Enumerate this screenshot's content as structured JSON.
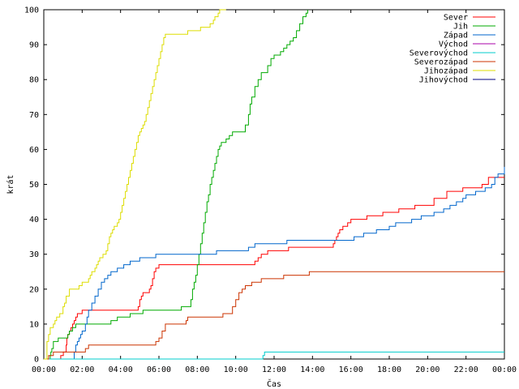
{
  "chart_data": {
    "type": "line",
    "xlabel": "Čas",
    "ylabel": "krát",
    "xlim": [
      0,
      1440
    ],
    "ylim": [
      0,
      100
    ],
    "x_unit": "minutes since 00:00",
    "x_ticks": [
      {
        "value": 0,
        "label": "00:00"
      },
      {
        "value": 120,
        "label": "02:00"
      },
      {
        "value": 240,
        "label": "04:00"
      },
      {
        "value": 360,
        "label": "06:00"
      },
      {
        "value": 480,
        "label": "08:00"
      },
      {
        "value": 600,
        "label": "10:00"
      },
      {
        "value": 720,
        "label": "12:00"
      },
      {
        "value": 840,
        "label": "14:00"
      },
      {
        "value": 960,
        "label": "16:00"
      },
      {
        "value": 1080,
        "label": "18:00"
      },
      {
        "value": 1200,
        "label": "20:00"
      },
      {
        "value": 1320,
        "label": "22:00"
      },
      {
        "value": 1440,
        "label": "00:00"
      }
    ],
    "y_ticks": [
      0,
      10,
      20,
      30,
      40,
      50,
      60,
      70,
      80,
      90,
      100
    ],
    "grid": false,
    "legend_position": "top-right",
    "series": [
      {
        "name": "Sever",
        "color": "#ff0000",
        "x": [
          0,
          52,
          53,
          60,
          61,
          70,
          72,
          75,
          80,
          85,
          90,
          95,
          100,
          105,
          110,
          120,
          130,
          140,
          150,
          160,
          170,
          290,
          295,
          300,
          305,
          310,
          315,
          320,
          330,
          335,
          340,
          345,
          350,
          360,
          370,
          380,
          650,
          660,
          670,
          680,
          700,
          760,
          765,
          900,
          905,
          910,
          915,
          920,
          925,
          930,
          935,
          940,
          950,
          960,
          970,
          1000,
          1010,
          1050,
          1060,
          1100,
          1110,
          1150,
          1160,
          1170,
          1180,
          1210,
          1220,
          1250,
          1260,
          1280,
          1300,
          1310,
          1320,
          1370,
          1380,
          1390,
          1440
        ],
        "y": [
          0,
          0,
          1,
          1,
          2,
          4,
          6,
          7,
          8,
          9,
          10,
          11,
          12,
          13,
          13,
          14,
          14,
          14,
          14,
          14,
          14,
          14,
          15,
          17,
          18,
          19,
          19,
          19,
          20,
          21,
          23,
          25,
          26,
          27,
          27,
          27,
          27,
          28,
          29,
          30,
          31,
          31,
          32,
          32,
          33,
          34,
          35,
          36,
          37,
          37,
          38,
          38,
          39,
          40,
          40,
          40,
          41,
          41,
          42,
          42,
          43,
          43,
          44,
          44,
          44,
          44,
          46,
          46,
          48,
          48,
          48,
          49,
          49,
          50,
          50,
          52,
          52
        ]
      },
      {
        "name": "Jih",
        "color": "#00aa00",
        "x": [
          0,
          15,
          20,
          22,
          25,
          30,
          45,
          60,
          70,
          75,
          80,
          90,
          100,
          110,
          120,
          200,
          210,
          220,
          230,
          240,
          270,
          300,
          310,
          320,
          330,
          340,
          350,
          360,
          420,
          430,
          440,
          460,
          465,
          470,
          475,
          480,
          485,
          490,
          495,
          500,
          505,
          510,
          515,
          520,
          525,
          530,
          535,
          540,
          545,
          550,
          555,
          560,
          570,
          580,
          590,
          600,
          620,
          630,
          640,
          645,
          650,
          660,
          670,
          680,
          700,
          710,
          720,
          730,
          740,
          750,
          760,
          770,
          780,
          790,
          800,
          810,
          820,
          825
        ],
        "y": [
          0,
          0,
          1,
          2,
          3,
          5,
          6,
          6,
          6,
          7,
          8,
          9,
          10,
          10,
          10,
          10,
          11,
          11,
          12,
          12,
          13,
          13,
          14,
          14,
          14,
          14,
          14,
          14,
          14,
          15,
          15,
          17,
          20,
          22,
          24,
          27,
          30,
          33,
          36,
          39,
          42,
          45,
          47,
          50,
          52,
          54,
          56,
          58,
          60,
          61,
          62,
          62,
          63,
          64,
          65,
          65,
          65,
          67,
          70,
          73,
          75,
          78,
          80,
          82,
          84,
          86,
          87,
          87,
          88,
          89,
          90,
          91,
          92,
          94,
          96,
          98,
          99,
          100
        ]
      },
      {
        "name": "Západ",
        "color": "#0066cc",
        "x": [
          0,
          90,
          95,
          100,
          105,
          110,
          115,
          120,
          125,
          130,
          135,
          140,
          150,
          160,
          170,
          180,
          190,
          200,
          210,
          230,
          250,
          260,
          270,
          280,
          300,
          350,
          500,
          540,
          560,
          640,
          660,
          760,
          860,
          900,
          940,
          970,
          980,
          1000,
          1010,
          1040,
          1050,
          1080,
          1090,
          1100,
          1110,
          1150,
          1160,
          1180,
          1200,
          1220,
          1230,
          1250,
          1270,
          1280,
          1290,
          1300,
          1310,
          1320,
          1340,
          1350,
          1370,
          1380,
          1400,
          1410,
          1420,
          1440
        ],
        "y": [
          0,
          0,
          2,
          4,
          5,
          6,
          7,
          8,
          8,
          10,
          12,
          14,
          16,
          18,
          20,
          22,
          23,
          24,
          25,
          26,
          27,
          27,
          28,
          28,
          29,
          30,
          30,
          31,
          31,
          32,
          33,
          34,
          34,
          34,
          34,
          35,
          35,
          36,
          36,
          37,
          37,
          38,
          38,
          39,
          39,
          40,
          40,
          41,
          41,
          42,
          42,
          43,
          44,
          44,
          45,
          45,
          46,
          47,
          47,
          48,
          48,
          49,
          50,
          52,
          53,
          55
        ]
      },
      {
        "name": "Východ",
        "color": "#aa00aa",
        "x": [],
        "y": []
      },
      {
        "name": "Severovýchod",
        "color": "#00cccc",
        "x": [
          0,
          680,
          685,
          690,
          1440
        ],
        "y": [
          0,
          0,
          1,
          2,
          2
        ]
      },
      {
        "name": "Severozápad",
        "color": "#cc3300",
        "x": [
          0,
          10,
          15,
          20,
          30,
          50,
          60,
          70,
          80,
          100,
          130,
          140,
          150,
          200,
          340,
          350,
          360,
          370,
          380,
          440,
          445,
          450,
          460,
          470,
          480,
          490,
          520,
          550,
          560,
          590,
          600,
          610,
          620,
          630,
          650,
          680,
          740,
          750,
          760,
          800,
          830,
          900,
          980,
          1000,
          1200,
          1440
        ],
        "y": [
          0,
          0,
          1,
          1,
          2,
          2,
          2,
          2,
          2,
          2,
          3,
          4,
          4,
          4,
          4,
          5,
          6,
          8,
          10,
          10,
          11,
          12,
          12,
          12,
          12,
          12,
          12,
          12,
          13,
          15,
          17,
          19,
          20,
          21,
          22,
          23,
          23,
          24,
          24,
          24,
          25,
          25,
          25,
          25,
          25,
          25
        ]
      },
      {
        "name": "Jihovýchod",
        "color": "#000080",
        "x": [],
        "y": []
      },
      {
        "name": "Jihozápad",
        "color": "#dddd00",
        "x": [
          0,
          10,
          15,
          20,
          25,
          30,
          35,
          40,
          50,
          60,
          65,
          70,
          80,
          90,
          100,
          110,
          120,
          130,
          135,
          140,
          145,
          150,
          160,
          165,
          170,
          175,
          180,
          185,
          190,
          195,
          200,
          205,
          210,
          215,
          220,
          225,
          230,
          235,
          240,
          245,
          250,
          255,
          260,
          265,
          270,
          275,
          280,
          285,
          290,
          295,
          300,
          305,
          310,
          315,
          320,
          325,
          330,
          335,
          340,
          345,
          350,
          355,
          360,
          365,
          370,
          375,
          380,
          385,
          390,
          395,
          400,
          420,
          450,
          480,
          490,
          500,
          510,
          520,
          530,
          535,
          540,
          545,
          550,
          560,
          570
        ],
        "y": [
          0,
          5,
          7,
          9,
          9,
          10,
          11,
          12,
          13,
          15,
          16,
          18,
          20,
          20,
          20,
          21,
          22,
          22,
          22,
          23,
          24,
          25,
          26,
          27,
          28,
          29,
          29,
          30,
          30,
          31,
          33,
          35,
          36,
          37,
          38,
          38,
          39,
          40,
          42,
          44,
          46,
          48,
          50,
          52,
          54,
          56,
          58,
          60,
          62,
          64,
          65,
          66,
          67,
          68,
          70,
          72,
          74,
          76,
          78,
          80,
          82,
          84,
          86,
          88,
          90,
          92,
          93,
          93,
          93,
          93,
          93,
          93,
          94,
          94,
          95,
          95,
          95,
          96,
          97,
          98,
          98,
          99,
          100,
          100,
          100
        ]
      }
    ]
  }
}
